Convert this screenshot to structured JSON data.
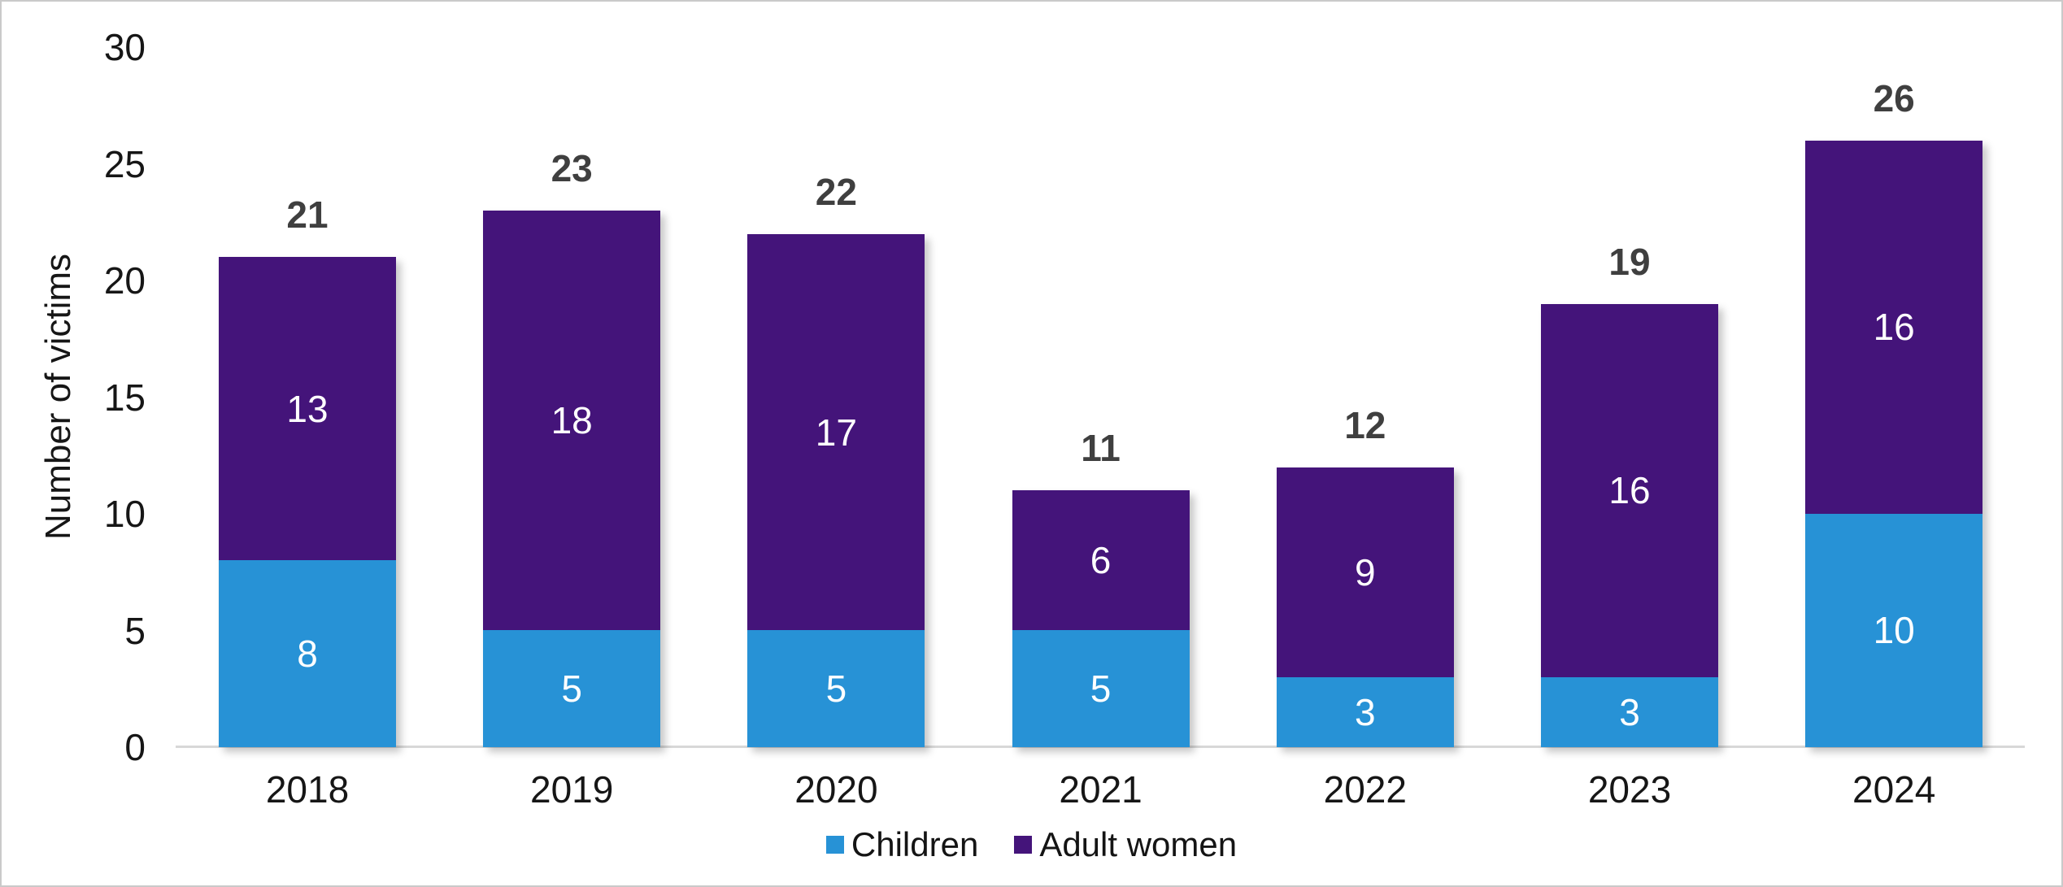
{
  "chart": {
    "y_axis_title": "Number of victims"
  },
  "chart_data": {
    "type": "bar",
    "stacked": true,
    "title": "",
    "xlabel": "",
    "ylabel": "Number of victims",
    "categories": [
      "2018",
      "2019",
      "2020",
      "2021",
      "2022",
      "2023",
      "2024"
    ],
    "series": [
      {
        "name": "Children",
        "color": "#2792D6",
        "values": [
          8,
          5,
          5,
          5,
          3,
          3,
          10
        ]
      },
      {
        "name": "Adult women",
        "color": "#44147A",
        "values": [
          13,
          18,
          17,
          6,
          9,
          16,
          16
        ]
      }
    ],
    "totals": [
      21,
      23,
      22,
      11,
      12,
      19,
      26
    ],
    "y_ticks": [
      0,
      5,
      10,
      15,
      20,
      25,
      30
    ],
    "ylim": [
      0,
      30
    ],
    "grid": false,
    "legend_position": "bottom",
    "value_labels": "inside-center",
    "total_labels": "above-bar"
  },
  "colors": {
    "segment_label": "#FFFFFF",
    "total_label": "#3F3F3F",
    "axis_text": "#161616",
    "axis_line": "#D8D8D8",
    "frame_border": "#CACACA",
    "background": "#FFFFFF"
  }
}
